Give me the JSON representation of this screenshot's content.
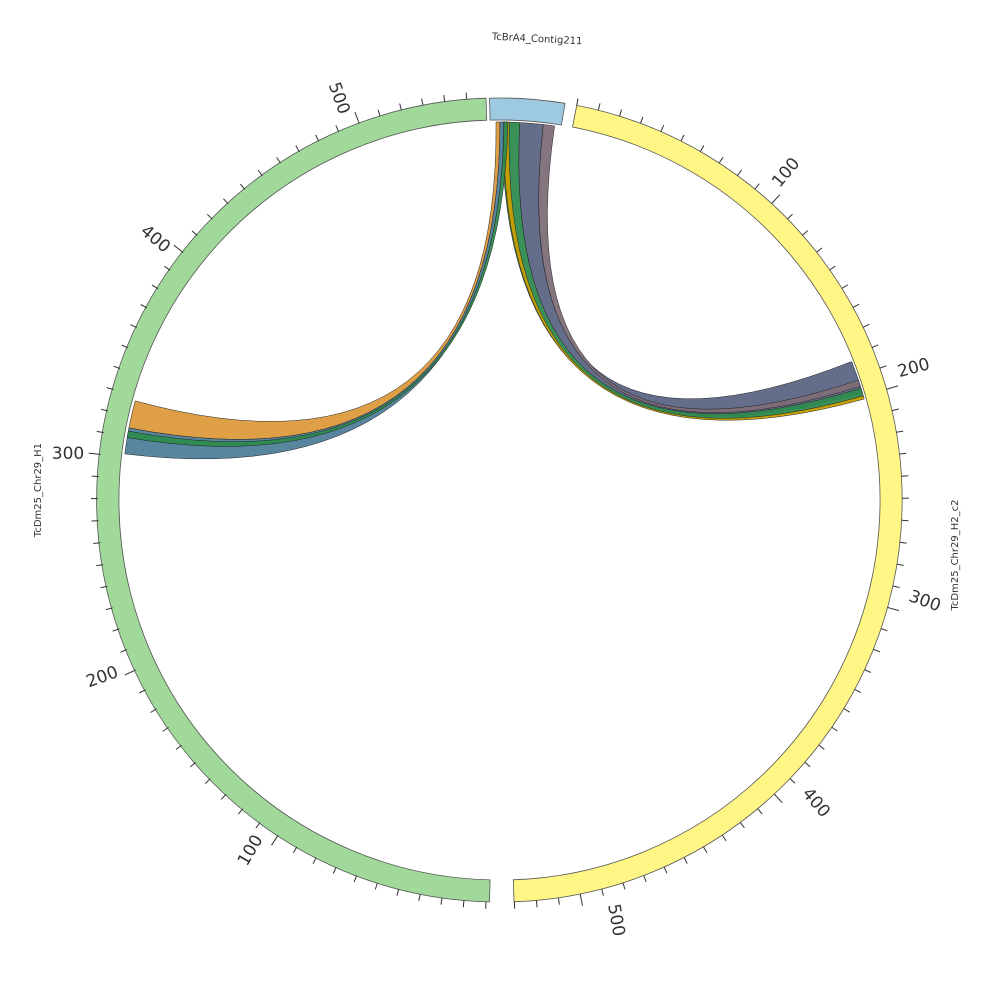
{
  "segments": [
    {
      "id": "contig",
      "label": "TcBrA4_Contig211",
      "color": "#9ecae1"
    },
    {
      "id": "h2",
      "label": "TcDm25_Chr29_H2_c2",
      "color": "#fff685",
      "ticks": [
        "100",
        "200",
        "300",
        "400",
        "500"
      ]
    },
    {
      "id": "h1",
      "label": "TcDm25_Chr29_H1",
      "color": "#a1d99b",
      "ticks": [
        "100",
        "200",
        "300",
        "400",
        "500"
      ]
    }
  ],
  "ribbon_colors": {
    "slate": "#5c6584",
    "mauve": "#7d6e78",
    "green": "#2e8b4e",
    "orange": "#dd9a3c",
    "teal": "#4f7f9a",
    "gold": "#c8a000"
  }
}
